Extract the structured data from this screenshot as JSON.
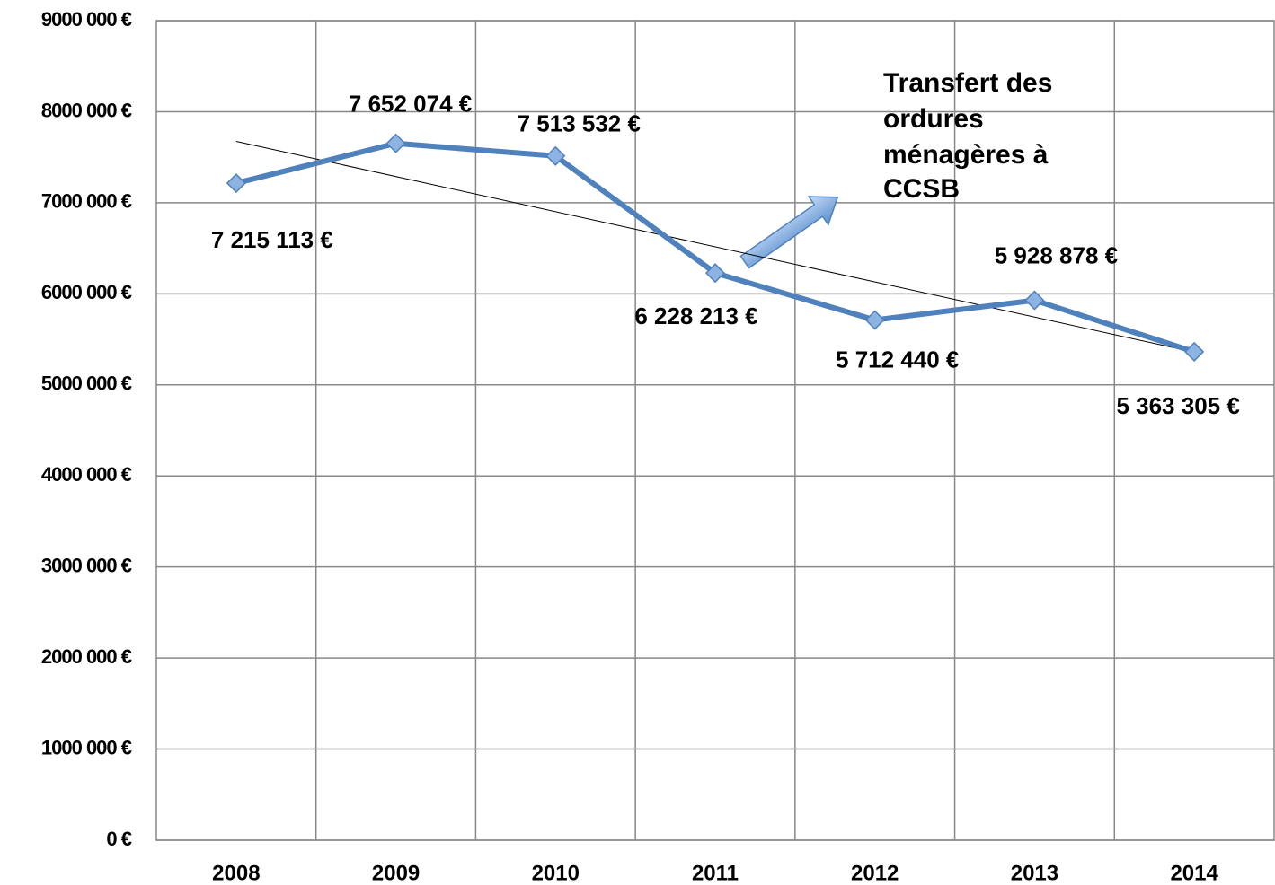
{
  "chart_data": {
    "type": "line",
    "categories": [
      "2008",
      "2009",
      "2010",
      "2011",
      "2012",
      "2013",
      "2014"
    ],
    "series": [
      {
        "color": "#4f81bd",
        "values": [
          7215113,
          7652074,
          7513532,
          6228213,
          5712440,
          5928878,
          5363305
        ],
        "value_labels": [
          "7 215 113 €",
          "7 652 074 €",
          "7 513 532 €",
          "6 228 213 €",
          "5 712 440 €",
          "5 928 878 €",
          "5 363 305 €"
        ]
      }
    ],
    "ylim": [
      0,
      9000000
    ],
    "yticks": [
      {
        "value": 0,
        "label": "0 €"
      },
      {
        "value": 1000000,
        "label": "1000 000 €"
      },
      {
        "value": 2000000,
        "label": "2000 000 €"
      },
      {
        "value": 3000000,
        "label": "3000 000 €"
      },
      {
        "value": 4000000,
        "label": "4000 000 €"
      },
      {
        "value": 5000000,
        "label": "5000 000 €"
      },
      {
        "value": 6000000,
        "label": "6000 000 €"
      },
      {
        "value": 7000000,
        "label": "7000 000 €"
      },
      {
        "value": 8000000,
        "label": "8000 000 €"
      },
      {
        "value": 9000000,
        "label": "9000 000 €"
      }
    ],
    "grid": true,
    "trendline": true,
    "annotation": [
      "Transfert des",
      "ordures",
      "ménagères à",
      "CCSB"
    ]
  }
}
